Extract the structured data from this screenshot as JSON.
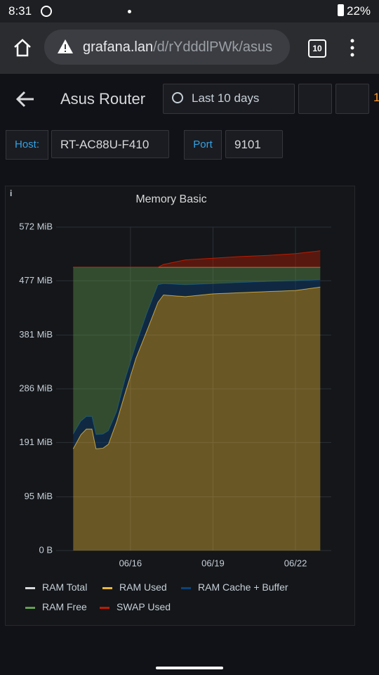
{
  "status_bar": {
    "time": "8:31",
    "battery": "22%"
  },
  "browser": {
    "url_host": "grafana.lan",
    "url_path": "/d/rYdddlPWk/asus",
    "tab_count": "10"
  },
  "header": {
    "title": "Asus Router",
    "time_range": "Last 10 days",
    "clipped": "1"
  },
  "variables": [
    {
      "label": "Host:",
      "value": "RT-AC88U-F410"
    },
    {
      "label": "Port",
      "value": "9101"
    }
  ],
  "panel": {
    "info": "i"
  },
  "chart_data": {
    "type": "area",
    "title": "Memory Basic",
    "x": [
      13.92,
      14.2,
      14.4,
      14.6,
      14.75,
      15.0,
      15.2,
      15.5,
      15.8,
      16.2,
      16.6,
      17.0,
      17.2,
      18,
      19,
      20,
      21,
      22,
      22.9
    ],
    "xlim": [
      13.3,
      23.3
    ],
    "xticks": [
      {
        "value": 16,
        "label": "06/16"
      },
      {
        "value": 19,
        "label": "06/19"
      },
      {
        "value": 22,
        "label": "06/22"
      }
    ],
    "ylim": [
      0,
      572
    ],
    "yticks": [
      {
        "value": 0,
        "label": "0 B"
      },
      {
        "value": 95,
        "label": "95 MiB"
      },
      {
        "value": 191,
        "label": "191 MiB"
      },
      {
        "value": 286,
        "label": "286 MiB"
      },
      {
        "value": 381,
        "label": "381 MiB"
      },
      {
        "value": 477,
        "label": "477 MiB"
      },
      {
        "value": 572,
        "label": "572 MiB"
      }
    ],
    "grid": true,
    "series": [
      {
        "name": "RAM Total",
        "color": "#d8d9da",
        "stacked": false,
        "values": [
          501,
          501,
          501,
          501,
          501,
          501,
          501,
          501,
          501,
          501,
          501,
          501,
          501,
          501,
          501,
          501,
          501,
          501,
          501
        ]
      },
      {
        "name": "RAM Used",
        "color": "#eab839",
        "stacked": true,
        "values": [
          180,
          205,
          215,
          215,
          180,
          181,
          188,
          228,
          277,
          340,
          389,
          439,
          452,
          449,
          454,
          456,
          458,
          460,
          466
        ]
      },
      {
        "name": "RAM Cache + Buffer",
        "color": "#0a437c",
        "stacked": true,
        "values": [
          26,
          24,
          22,
          22,
          25,
          25,
          24,
          18,
          25,
          24,
          31,
          31,
          20,
          21,
          18,
          18,
          18,
          17,
          13
        ]
      },
      {
        "name": "RAM Free",
        "color": "#629e51",
        "stacked": true,
        "values": [
          295,
          272,
          264,
          264,
          296,
          295,
          289,
          255,
          199,
          137,
          81,
          31,
          29,
          31,
          29,
          27,
          25,
          24,
          22
        ]
      },
      {
        "name": "SWAP Used",
        "color": "#bf1b00",
        "stacked": true,
        "values": [
          0,
          0,
          0,
          0,
          0,
          0,
          0,
          0,
          0,
          0,
          0,
          0,
          5,
          13,
          16,
          19,
          21,
          24,
          29
        ]
      }
    ]
  }
}
